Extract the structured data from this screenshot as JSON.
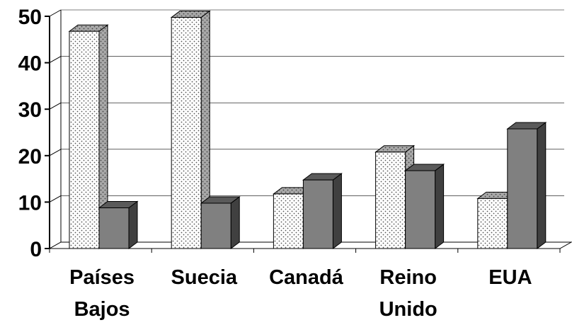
{
  "chart_data": {
    "type": "bar",
    "title": "",
    "xlabel": "",
    "ylabel": "",
    "ylim": [
      0,
      50
    ],
    "yticks": [
      "0",
      "10",
      "20",
      "30",
      "40",
      "50"
    ],
    "grid": true,
    "categories": [
      [
        "Países",
        "Bajos"
      ],
      [
        "Suecia"
      ],
      [
        "Canadá"
      ],
      [
        "Reino",
        "Unido"
      ],
      [
        "EUA"
      ]
    ],
    "series": [
      {
        "values": [
          46,
          49,
          11,
          20,
          10
        ],
        "pattern": "dotted",
        "color": "#ffffff"
      },
      {
        "values": [
          8,
          9,
          14,
          16,
          25
        ],
        "pattern": "solid",
        "color": "#808080"
      }
    ]
  }
}
